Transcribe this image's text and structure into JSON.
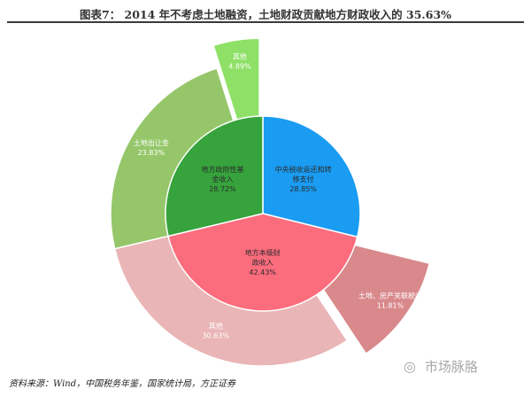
{
  "title": "图表7：  2014 年不考虑土地融资，土地财政贡献地方财政收入的 35.63%",
  "source": "资料来源：Wind，中国税务年鉴，国家统计局，方正证券",
  "watermark": "市场脉胳",
  "chart_data": {
    "type": "pie",
    "inner": [
      {
        "label": [
          "中央税收返还和转",
          "移支付"
        ],
        "value": "28.85%",
        "pct": 28.85,
        "color": "#1a9cf2"
      },
      {
        "label": [
          "地方本级财",
          "政收入"
        ],
        "value": "42.43%",
        "pct": 42.43,
        "color": "#fb6c7d"
      },
      {
        "label": [
          "地方政府性基",
          "金收入"
        ],
        "value": "28.72%",
        "pct": 28.72,
        "color": "#37a33c"
      }
    ],
    "outer": [
      {
        "label": [
          "土地、房产关联税收"
        ],
        "value": "11.81%",
        "pct": 11.81,
        "color": "#d9898c"
      },
      {
        "label": [
          "其他"
        ],
        "value": "30.63%",
        "pct": 30.63,
        "color": "#eab5b6"
      },
      {
        "label": [
          "土地出让金"
        ],
        "value": "23.83%",
        "pct": 23.83,
        "color": "#95c76a"
      },
      {
        "label": [
          "其他"
        ],
        "value": "4.89%",
        "pct": 4.89,
        "color": "#8ee066"
      }
    ]
  }
}
